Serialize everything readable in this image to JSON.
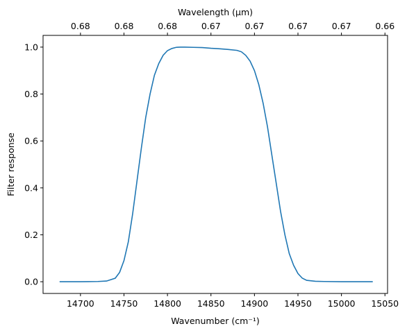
{
  "chart_data": {
    "type": "line",
    "title": "",
    "xlabel": "Wavenumber (cm⁻¹)",
    "ylabel": "Filter response",
    "top_xlabel": "Wavelength (μm)",
    "xlim": [
      14657,
      15053
    ],
    "ylim": [
      -0.05,
      1.05
    ],
    "x_ticks": [
      14700,
      14750,
      14800,
      14850,
      14900,
      14950,
      15000,
      15050
    ],
    "y_ticks": [
      0.0,
      0.2,
      0.4,
      0.6,
      0.8,
      1.0
    ],
    "y_tick_labels": [
      "0.0",
      "0.2",
      "0.4",
      "0.6",
      "0.8",
      "1.0"
    ],
    "top_ticks": [
      {
        "at": 14700,
        "label": "0.68"
      },
      {
        "at": 14750,
        "label": "0.68"
      },
      {
        "at": 14800,
        "label": "0.68"
      },
      {
        "at": 14850,
        "label": "0.67"
      },
      {
        "at": 14900,
        "label": "0.67"
      },
      {
        "at": 14950,
        "label": "0.67"
      },
      {
        "at": 15000,
        "label": "0.67"
      },
      {
        "at": 15050,
        "label": "0.66"
      }
    ],
    "grid": false,
    "legend": "none",
    "line_color": "#1f77b4",
    "series": [
      {
        "x": [
          14676,
          14700,
          14720,
          14730,
          14740,
          14745,
          14750,
          14755,
          14760,
          14765,
          14770,
          14775,
          14780,
          14785,
          14790,
          14795,
          14800,
          14805,
          14810,
          14815,
          14820,
          14830,
          14840,
          14850,
          14860,
          14870,
          14880,
          14885,
          14890,
          14895,
          14900,
          14905,
          14910,
          14915,
          14920,
          14925,
          14930,
          14935,
          14940,
          14945,
          14950,
          14955,
          14960,
          14970,
          14980,
          15000,
          15036
        ],
        "y": [
          0.0,
          0.0,
          0.001,
          0.003,
          0.015,
          0.04,
          0.09,
          0.17,
          0.29,
          0.43,
          0.57,
          0.7,
          0.8,
          0.88,
          0.93,
          0.965,
          0.985,
          0.994,
          0.999,
          1.0,
          1.0,
          0.999,
          0.998,
          0.995,
          0.993,
          0.99,
          0.986,
          0.98,
          0.965,
          0.94,
          0.9,
          0.84,
          0.76,
          0.66,
          0.54,
          0.42,
          0.3,
          0.2,
          0.12,
          0.07,
          0.035,
          0.015,
          0.006,
          0.002,
          0.001,
          0.0,
          0.0
        ]
      }
    ]
  }
}
